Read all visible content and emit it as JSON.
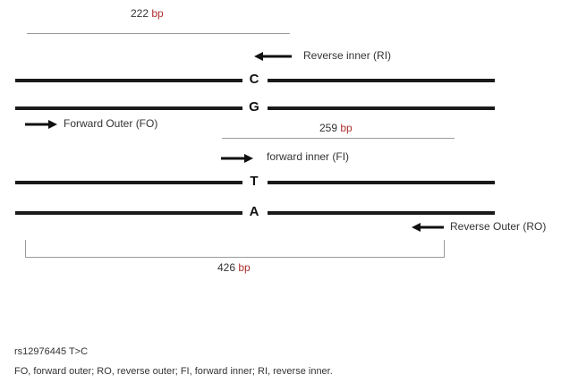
{
  "sizes": {
    "rev_inner_product": {
      "num": "222",
      "unit": "bp"
    },
    "fwd_inner_product": {
      "num": "259",
      "unit": "bp"
    },
    "outer_product": {
      "num": "426",
      "unit": "bp"
    }
  },
  "primers": {
    "reverse_inner": "Reverse inner (RI)",
    "forward_outer": "Forward Outer (FO)",
    "forward_inner": "forward inner (FI)",
    "reverse_outer": "Reverse Outer (RO)"
  },
  "alleles": {
    "strand1": "C",
    "strand2": "G",
    "strand3": "T",
    "strand4": "A"
  },
  "notes": {
    "snp": "rs12976445 T>C",
    "abbreviations": "FO, forward outer; RO, reverse outer; FI, forward inner; RI, reverse inner."
  },
  "colors": {
    "strand": "#1a1a1a",
    "bracket": "#9a9a9a",
    "bp_unit": "#b03030"
  }
}
